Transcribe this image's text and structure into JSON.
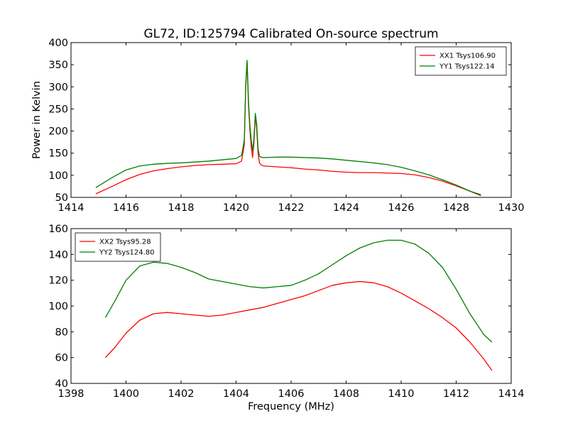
{
  "figure": {
    "title": "GL72, ID:125794 Calibrated On-source spectrum"
  },
  "chart_data": [
    {
      "type": "line",
      "title": "GL72, ID:125794 Calibrated On-source spectrum",
      "xlabel": "",
      "ylabel": "Power in Kelvin",
      "xlim": [
        1414,
        1430
      ],
      "ylim": [
        50,
        400
      ],
      "xticks": [
        1414,
        1416,
        1418,
        1420,
        1422,
        1424,
        1426,
        1428,
        1430
      ],
      "yticks": [
        50,
        100,
        150,
        200,
        250,
        300,
        350,
        400
      ],
      "grid": false,
      "legend_position": "top-right",
      "series": [
        {
          "name": "XX1 Tsys106.90",
          "color": "#ff0000",
          "x": [
            1414.9,
            1415.5,
            1416.0,
            1416.5,
            1417.0,
            1417.5,
            1418.0,
            1418.5,
            1419.0,
            1419.5,
            1420.0,
            1420.2,
            1420.3,
            1420.35,
            1420.4,
            1420.45,
            1420.5,
            1420.55,
            1420.6,
            1420.65,
            1420.7,
            1420.75,
            1420.8,
            1420.85,
            1420.9,
            1421.0,
            1421.5,
            1422.0,
            1422.5,
            1423.0,
            1423.5,
            1424.0,
            1424.5,
            1425.0,
            1425.5,
            1426.0,
            1426.5,
            1427.0,
            1427.5,
            1428.0,
            1428.5,
            1428.9
          ],
          "values": [
            58,
            75,
            90,
            102,
            110,
            115,
            119,
            122,
            124,
            125,
            126,
            132,
            170,
            300,
            355,
            260,
            205,
            165,
            140,
            175,
            235,
            205,
            150,
            128,
            124,
            121,
            119,
            117,
            114,
            112,
            109,
            107,
            106,
            106,
            105,
            104,
            101,
            95,
            87,
            76,
            64,
            54
          ]
        },
        {
          "name": "YY1 Tsys122.14",
          "color": "#008000",
          "x": [
            1414.9,
            1415.5,
            1416.0,
            1416.5,
            1417.0,
            1417.5,
            1418.0,
            1418.5,
            1419.0,
            1419.5,
            1420.0,
            1420.2,
            1420.3,
            1420.35,
            1420.4,
            1420.45,
            1420.5,
            1420.55,
            1420.6,
            1420.65,
            1420.7,
            1420.75,
            1420.8,
            1420.85,
            1420.9,
            1421.0,
            1421.5,
            1422.0,
            1422.5,
            1423.0,
            1423.5,
            1424.0,
            1424.5,
            1425.0,
            1425.5,
            1426.0,
            1426.5,
            1427.0,
            1427.5,
            1428.0,
            1428.5,
            1428.9
          ],
          "values": [
            72,
            95,
            112,
            121,
            125,
            127,
            128,
            130,
            132,
            135,
            138,
            145,
            180,
            305,
            360,
            270,
            215,
            180,
            155,
            185,
            240,
            215,
            160,
            143,
            141,
            140,
            141,
            141,
            140,
            139,
            137,
            134,
            131,
            128,
            124,
            118,
            110,
            101,
            90,
            78,
            64,
            56
          ]
        }
      ]
    },
    {
      "type": "line",
      "title": "",
      "xlabel": "Frequency (MHz)",
      "ylabel": "",
      "xlim": [
        1398,
        1414
      ],
      "ylim": [
        40,
        160
      ],
      "xticks": [
        1398,
        1400,
        1402,
        1404,
        1406,
        1408,
        1410,
        1412,
        1414
      ],
      "yticks": [
        40,
        60,
        80,
        100,
        120,
        140,
        160
      ],
      "grid": false,
      "legend_position": "top-left",
      "series": [
        {
          "name": "XX2 Tsys95.28",
          "color": "#ff0000",
          "x": [
            1399.25,
            1399.6,
            1400.0,
            1400.5,
            1401.0,
            1401.5,
            1402.0,
            1402.5,
            1403.0,
            1403.5,
            1404.0,
            1404.5,
            1405.0,
            1405.5,
            1406.0,
            1406.5,
            1407.0,
            1407.5,
            1408.0,
            1408.5,
            1409.0,
            1409.5,
            1410.0,
            1410.5,
            1411.0,
            1411.5,
            1412.0,
            1412.5,
            1413.0,
            1413.3
          ],
          "values": [
            60,
            68,
            79,
            89,
            94,
            95,
            94,
            93,
            92,
            93,
            95,
            97,
            99,
            102,
            105,
            108,
            112,
            116,
            118,
            119,
            118,
            115,
            110,
            104,
            98,
            91,
            83,
            72,
            59,
            50
          ]
        },
        {
          "name": "YY2 Tsys124.80",
          "color": "#008000",
          "x": [
            1399.25,
            1399.6,
            1400.0,
            1400.5,
            1401.0,
            1401.5,
            1402.0,
            1402.5,
            1403.0,
            1403.5,
            1404.0,
            1404.5,
            1405.0,
            1405.5,
            1406.0,
            1406.5,
            1407.0,
            1407.5,
            1408.0,
            1408.5,
            1409.0,
            1409.5,
            1410.0,
            1410.5,
            1411.0,
            1411.5,
            1412.0,
            1412.5,
            1413.0,
            1413.3
          ],
          "values": [
            91,
            104,
            120,
            131,
            134,
            133,
            130,
            126,
            121,
            119,
            117,
            115,
            114,
            115,
            116,
            120,
            125,
            132,
            139,
            145,
            149,
            151,
            151,
            148,
            141,
            130,
            113,
            94,
            78,
            72
          ]
        }
      ]
    }
  ]
}
